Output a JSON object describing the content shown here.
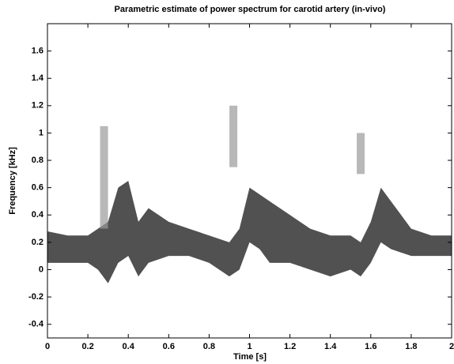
{
  "chart_data": {
    "type": "band",
    "title": "Parametric estimate of power spectrum for carotid artery (in-vivo)",
    "x_label": "Time [s]",
    "y_label": "Frequency [kHz]",
    "xlim": [
      0,
      2
    ],
    "xticks": [
      0,
      0.2,
      0.4,
      0.6,
      0.8,
      1,
      1.2,
      1.4,
      1.6,
      1.8,
      2
    ],
    "ylim": [
      -0.5,
      1.8
    ],
    "yticks": [
      -0.4,
      -0.2,
      0,
      0.2,
      0.4,
      0.6,
      0.8,
      1,
      1.2,
      1.4,
      1.6
    ],
    "series": [
      {
        "style": "area",
        "color": "#333333",
        "x": [
          0,
          0.1,
          0.2,
          0.25,
          0.3,
          0.35,
          0.4,
          0.45,
          0.5,
          0.6,
          0.7,
          0.8,
          0.9,
          0.95,
          1,
          1.05,
          1.1,
          1.2,
          1.3,
          1.4,
          1.5,
          1.55,
          1.6,
          1.65,
          1.7,
          1.8,
          1.9,
          2
        ],
        "upper": [
          0.28,
          0.25,
          0.25,
          0.3,
          0.35,
          0.6,
          0.65,
          0.35,
          0.45,
          0.35,
          0.3,
          0.25,
          0.2,
          0.3,
          0.6,
          0.55,
          0.5,
          0.4,
          0.3,
          0.25,
          0.25,
          0.2,
          0.35,
          0.6,
          0.5,
          0.3,
          0.25,
          0.25
        ],
        "lower": [
          0.05,
          0.05,
          0.05,
          0,
          -0.1,
          0.05,
          0.1,
          -0.05,
          0.05,
          0.1,
          0.1,
          0.05,
          -0.05,
          0,
          0.2,
          0.15,
          0.05,
          0.05,
          0,
          -0.05,
          0,
          -0.05,
          0.05,
          0.2,
          0.15,
          0.1,
          0.1,
          0.1
        ]
      },
      {
        "style": "streak",
        "color": "#9a9a9a",
        "x": [
          0.28,
          0.92,
          1.55
        ],
        "upper": [
          1.05,
          1.2,
          1
        ],
        "lower": [
          0.3,
          0.75,
          0.7
        ]
      }
    ]
  }
}
